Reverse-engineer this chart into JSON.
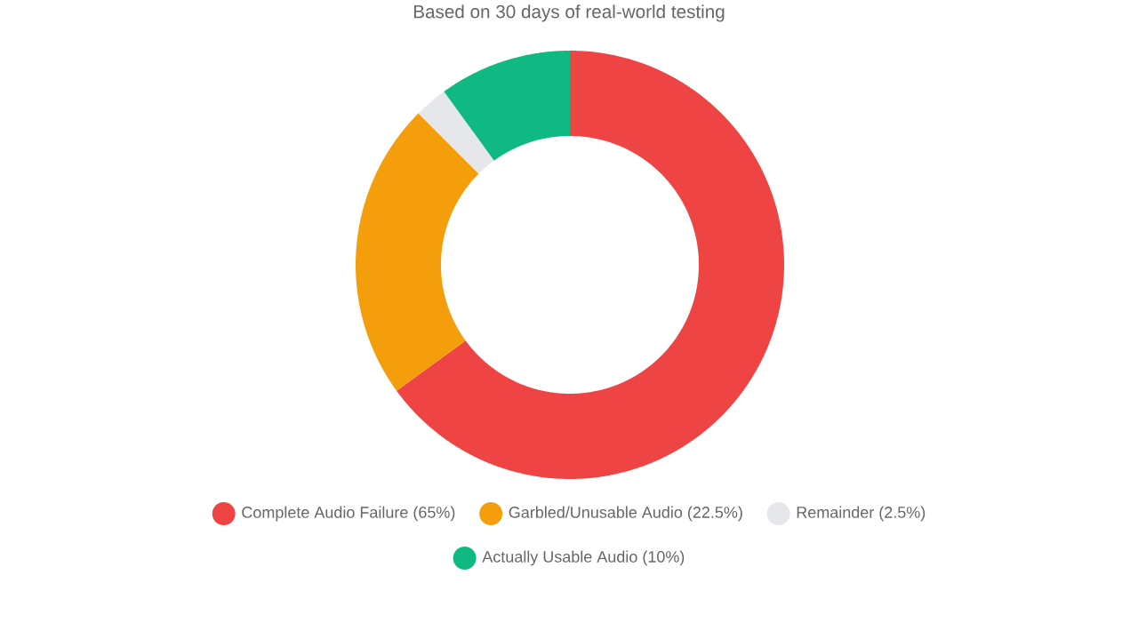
{
  "chart_data": {
    "type": "donut",
    "subtitle": "Based on 30 days of real-world testing",
    "categories": [
      "Complete Audio Failure (65%)",
      "Garbled/Unusable Audio (22.5%)",
      "Remainder (2.5%)",
      "Actually Usable Audio (10%)"
    ],
    "values": [
      65,
      22.5,
      2.5,
      10
    ],
    "colors": [
      "#ef4444",
      "#f59e0b",
      "#e5e7eb",
      "#10b981"
    ],
    "legend": "bottom"
  }
}
